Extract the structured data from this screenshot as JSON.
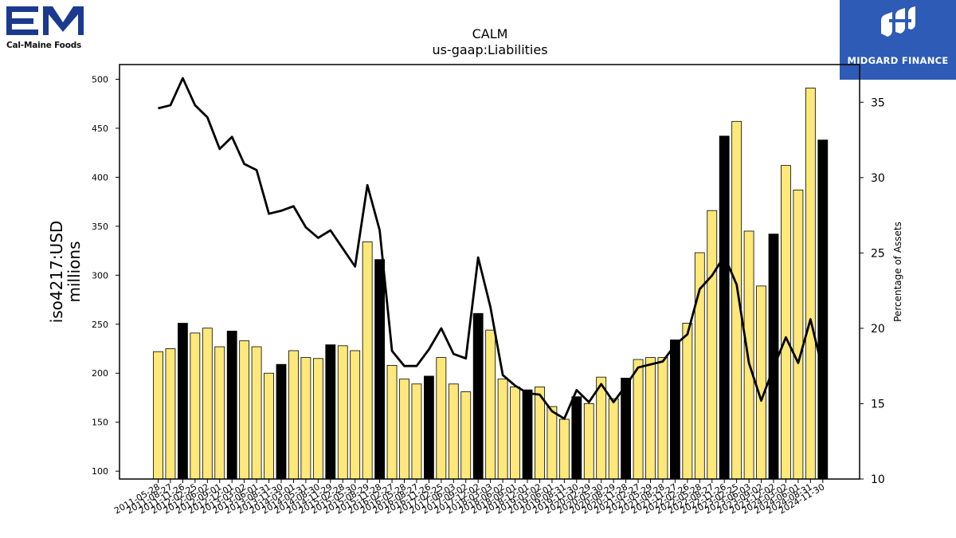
{
  "brand_left": {
    "logo_letters": "EM",
    "name": "Cal-Maine Foods",
    "color": "#1b3a8f"
  },
  "brand_right": {
    "name": "MIDGARD FINANCE",
    "background": "#2d5bb5"
  },
  "chart_data": {
    "type": "bar",
    "title": "CALM",
    "subtitle": "us-gaap:Liabilities",
    "ylabel_left": "iso4217:USD\nmillions",
    "ylabel_right": "Percentage of Assets",
    "ylim_left": [
      92,
      515
    ],
    "ylim_right": [
      10,
      37.5
    ],
    "yticks_left": [
      100,
      150,
      200,
      250,
      300,
      350,
      400,
      450,
      500
    ],
    "yticks_right": [
      10,
      15,
      20,
      25,
      30,
      35
    ],
    "grid": false,
    "colors": {
      "bar_quarter": "#fde879",
      "bar_annual": "#000000",
      "line": "#000000"
    },
    "categories": [
      "2011-05-28",
      "2011-08-27",
      "2011-11-26",
      "2012-02-25",
      "2012-06-02",
      "2012-09-01",
      "2012-12-01",
      "2013-03-02",
      "2013-06-01",
      "2013-08-31",
      "2013-11-30",
      "2014-03-01",
      "2014-05-31",
      "2014-08-30",
      "2014-11-29",
      "2015-02-28",
      "2015-05-30",
      "2015-08-29",
      "2015-11-28",
      "2016-02-27",
      "2016-05-28",
      "2016-08-27",
      "2016-11-26",
      "2017-02-25",
      "2017-06-03",
      "2017-09-02",
      "2017-12-02",
      "2018-03-03",
      "2018-06-02",
      "2018-09-01",
      "2018-12-01",
      "2019-03-02",
      "2019-06-01",
      "2019-08-31",
      "2019-11-30",
      "2020-02-29",
      "2020-05-30",
      "2020-08-29",
      "2020-11-28",
      "2021-02-27",
      "2021-05-29",
      "2021-08-28",
      "2021-11-27",
      "2022-02-26",
      "2022-05-28",
      "2022-08-27",
      "2022-11-26",
      "2023-02-25",
      "2023-06-03",
      "2023-09-02",
      "2023-12-02",
      "2024-03-02",
      "2024-06-01",
      "2024-08-31",
      "2024-11-30"
    ],
    "series": [
      {
        "kind": "bar",
        "values": [
          222,
          225,
          251,
          241,
          246,
          227,
          243,
          233,
          227,
          200,
          209,
          223,
          216,
          215,
          229,
          228,
          223,
          334,
          316,
          208,
          194,
          189,
          197,
          216,
          189,
          181,
          261,
          244,
          194,
          186,
          183,
          186,
          166,
          153,
          176,
          169,
          196,
          174,
          195,
          214,
          216,
          216,
          234,
          251,
          323,
          366,
          442,
          457,
          345,
          289,
          342,
          412,
          387,
          491,
          438
        ],
        "annual": [
          false,
          false,
          true,
          false,
          false,
          false,
          true,
          false,
          false,
          false,
          true,
          false,
          false,
          false,
          true,
          false,
          false,
          false,
          true,
          false,
          false,
          false,
          true,
          false,
          false,
          false,
          true,
          false,
          false,
          false,
          true,
          false,
          false,
          false,
          true,
          false,
          false,
          false,
          true,
          false,
          false,
          false,
          true,
          false,
          false,
          false,
          true,
          false,
          false,
          false,
          true,
          false,
          false,
          false,
          true
        ]
      },
      {
        "kind": "line",
        "axis": "right",
        "name": "Percentage of Assets",
        "values": [
          34.6,
          34.8,
          36.6,
          34.8,
          34.0,
          31.9,
          32.7,
          30.9,
          30.5,
          27.6,
          27.8,
          28.1,
          26.7,
          26.0,
          26.5,
          25.3,
          24.1,
          29.5,
          26.5,
          18.5,
          17.5,
          17.5,
          18.6,
          20.0,
          18.3,
          18.0,
          24.7,
          21.4,
          16.9,
          16.2,
          15.7,
          15.6,
          14.5,
          14.0,
          15.9,
          15.1,
          16.3,
          15.1,
          16.2,
          17.4,
          17.6,
          17.8,
          18.9,
          19.6,
          22.6,
          23.5,
          24.8,
          22.9,
          17.7,
          15.2,
          17.4,
          19.4,
          17.7,
          20.6,
          17.2
        ]
      }
    ]
  }
}
